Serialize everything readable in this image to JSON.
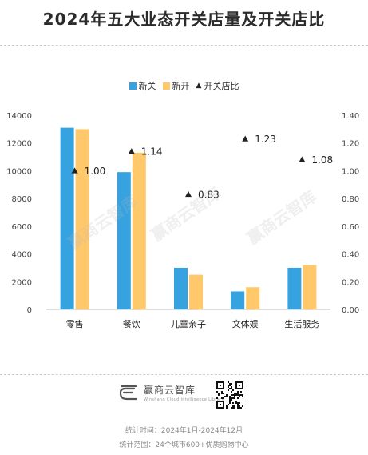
{
  "title": "2024年五大业态开关店量及开关店比",
  "legend": {
    "close": "新关",
    "open": "新开",
    "ratio": "开关店比"
  },
  "colors": {
    "close": "#36a3e0",
    "open": "#ffc86b",
    "ratio": "#222222"
  },
  "chart_data": {
    "type": "bar",
    "categories": [
      "零售",
      "餐饮",
      "儿童亲子",
      "文体娱",
      "生活服务"
    ],
    "series": [
      {
        "name": "新关",
        "axis": "left",
        "values": [
          13100,
          9900,
          3000,
          1300,
          3000
        ]
      },
      {
        "name": "新开",
        "axis": "left",
        "values": [
          13000,
          11300,
          2500,
          1600,
          3200
        ]
      },
      {
        "name": "开关店比",
        "axis": "right",
        "marker": "triangle",
        "values": [
          1.0,
          1.14,
          0.83,
          1.23,
          1.08
        ],
        "labels": [
          "1.00",
          "1.14",
          "0.83",
          "1.23",
          "1.08"
        ]
      }
    ],
    "ylim": [
      0,
      14000
    ],
    "yticks": [
      "0",
      "2000",
      "4000",
      "6000",
      "8000",
      "10000",
      "12000",
      "14000"
    ],
    "y2lim": [
      0,
      1.4
    ],
    "y2ticks": [
      "0.00",
      "0.20",
      "0.40",
      "0.60",
      "0.80",
      "1.00",
      "1.20",
      "1.40"
    ],
    "legend_position": "top-center",
    "grid": false
  },
  "watermark_text": "赢商云智库",
  "logo": {
    "name": "赢商云智库",
    "sub": "Winshang Cloud Intelligence Library"
  },
  "footer": {
    "line1": "统计时间：2024年1月-2024年12月",
    "line2": "统计范围：24个城市600+优质购物中心"
  }
}
